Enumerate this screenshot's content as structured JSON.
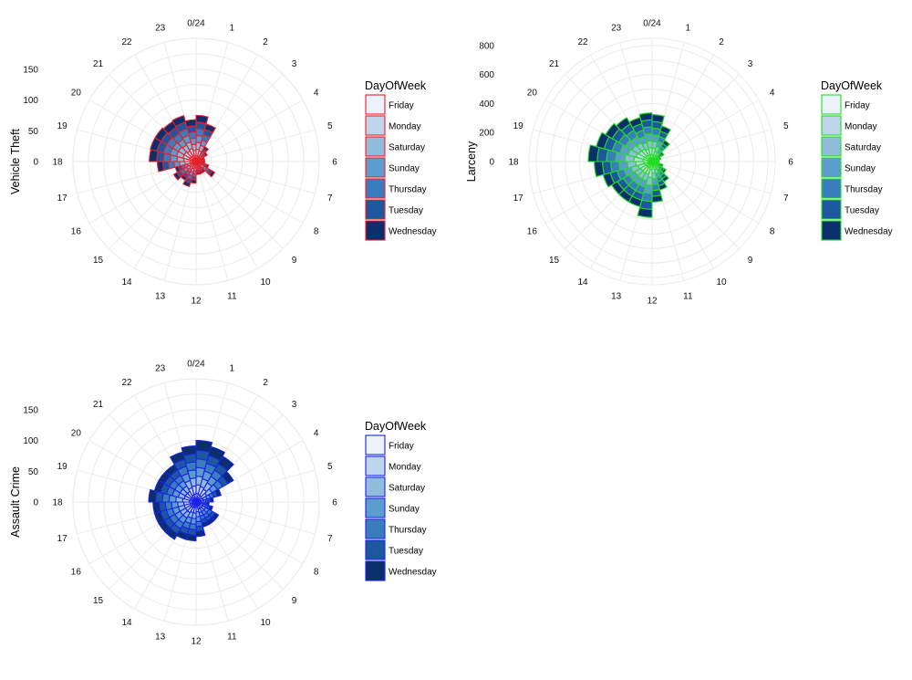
{
  "legend_title": "DayOfWeek",
  "days": [
    "Friday",
    "Monday",
    "Saturday",
    "Sunday",
    "Thursday",
    "Tuesday",
    "Wednesday"
  ],
  "fill_colors": [
    "#ebf2fb",
    "#bed5ec",
    "#91bddc",
    "#5c9dcd",
    "#3a7dbd",
    "#1d57a0",
    "#0b2f6d"
  ],
  "hour_labels": [
    "0/24",
    "1",
    "2",
    "3",
    "4",
    "5",
    "6",
    "7",
    "8",
    "9",
    "10",
    "11",
    "12",
    "13",
    "14",
    "15",
    "16",
    "17",
    "18",
    "19",
    "20",
    "21",
    "22",
    "23"
  ],
  "chart_data": [
    {
      "type": "stacked polar bar",
      "ylabel": "Vehicle Theft",
      "outline_color": "#e8202a",
      "ytick_labels": [
        "0",
        "50",
        "100",
        "150"
      ],
      "ytick_values": [
        0,
        50,
        100,
        150
      ],
      "rmax": 200,
      "series": [
        {
          "name": "Friday",
          "values": [
            10,
            9,
            4,
            3,
            2,
            2,
            2,
            3,
            5,
            3,
            3,
            3,
            5,
            6,
            5,
            6,
            5,
            9,
            10,
            11,
            11,
            10,
            11,
            9
          ]
        },
        {
          "name": "Monday",
          "values": [
            10,
            9,
            4,
            3,
            2,
            2,
            2,
            3,
            5,
            3,
            3,
            3,
            5,
            6,
            5,
            6,
            5,
            9,
            10,
            11,
            11,
            10,
            11,
            9
          ]
        },
        {
          "name": "Saturday",
          "values": [
            11,
            9,
            4,
            3,
            2,
            2,
            2,
            3,
            5,
            3,
            3,
            3,
            5,
            6,
            5,
            6,
            5,
            9,
            11,
            11,
            11,
            11,
            11,
            10
          ]
        },
        {
          "name": "Sunday",
          "values": [
            11,
            9,
            4,
            3,
            2,
            2,
            2,
            3,
            5,
            3,
            3,
            3,
            5,
            6,
            5,
            6,
            5,
            9,
            11,
            11,
            11,
            11,
            11,
            10
          ]
        },
        {
          "name": "Thursday",
          "values": [
            11,
            9,
            4,
            3,
            2,
            2,
            2,
            3,
            5,
            3,
            3,
            3,
            5,
            6,
            5,
            6,
            5,
            9,
            11,
            11,
            11,
            11,
            11,
            10
          ]
        },
        {
          "name": "Tuesday",
          "values": [
            11,
            9,
            4,
            3,
            2,
            2,
            2,
            3,
            5,
            3,
            3,
            3,
            5,
            6,
            5,
            6,
            5,
            9,
            11,
            11,
            11,
            11,
            11,
            10
          ]
        },
        {
          "name": "Wednesday",
          "values": [
            11,
            9,
            4,
            3,
            2,
            2,
            2,
            3,
            5,
            3,
            3,
            3,
            5,
            6,
            5,
            6,
            5,
            9,
            12,
            11,
            11,
            11,
            11,
            10
          ]
        }
      ]
    },
    {
      "type": "stacked polar bar",
      "ylabel": "Larceny",
      "outline_color": "#22dd22",
      "ytick_labels": [
        "0",
        "200",
        "400",
        "600",
        "800"
      ],
      "ytick_values": [
        0,
        200,
        400,
        600,
        800
      ],
      "rmax": 850,
      "series": [
        {
          "name": "Friday",
          "values": [
            46,
            36,
            24,
            13,
            9,
            7,
            7,
            11,
            16,
            23,
            29,
            40,
            55,
            46,
            46,
            46,
            50,
            57,
            63,
            57,
            53,
            50,
            45,
            48
          ]
        },
        {
          "name": "Monday",
          "values": [
            46,
            36,
            24,
            13,
            9,
            7,
            7,
            11,
            16,
            23,
            29,
            40,
            55,
            46,
            46,
            46,
            50,
            57,
            63,
            57,
            53,
            50,
            45,
            48
          ]
        },
        {
          "name": "Saturday",
          "values": [
            46,
            36,
            24,
            13,
            9,
            7,
            7,
            11,
            16,
            23,
            29,
            40,
            55,
            46,
            46,
            46,
            50,
            57,
            63,
            57,
            53,
            50,
            45,
            48
          ]
        },
        {
          "name": "Sunday",
          "values": [
            46,
            36,
            24,
            13,
            9,
            7,
            7,
            11,
            16,
            23,
            29,
            40,
            55,
            46,
            46,
            46,
            50,
            57,
            63,
            57,
            53,
            50,
            45,
            48
          ]
        },
        {
          "name": "Thursday",
          "values": [
            46,
            36,
            24,
            13,
            9,
            7,
            7,
            11,
            16,
            23,
            29,
            40,
            55,
            46,
            46,
            46,
            50,
            57,
            63,
            57,
            53,
            50,
            45,
            48
          ]
        },
        {
          "name": "Tuesday",
          "values": [
            46,
            36,
            24,
            13,
            9,
            7,
            7,
            11,
            16,
            23,
            29,
            40,
            55,
            46,
            46,
            46,
            50,
            57,
            63,
            57,
            53,
            50,
            45,
            48
          ]
        },
        {
          "name": "Wednesday",
          "values": [
            48,
            38,
            26,
            15,
            9,
            7,
            7,
            11,
            16,
            23,
            29,
            40,
            55,
            46,
            46,
            46,
            50,
            57,
            63,
            57,
            53,
            50,
            45,
            48
          ]
        }
      ]
    },
    {
      "type": "stacked polar bar",
      "ylabel": "Assault Crime",
      "outline_color": "#1a22e8",
      "ytick_labels": [
        "0",
        "50",
        "100",
        "150"
      ],
      "ytick_values": [
        0,
        50,
        100,
        150
      ],
      "rmax": 200,
      "series": [
        {
          "name": "Friday",
          "values": [
            14,
            13,
            12,
            10,
            6,
            4,
            3,
            4,
            6,
            6,
            6,
            8,
            9,
            9,
            10,
            10,
            10,
            10,
            11,
            10,
            10,
            10,
            12,
            13
          ]
        },
        {
          "name": "Monday",
          "values": [
            14,
            13,
            12,
            10,
            6,
            4,
            3,
            4,
            6,
            6,
            6,
            8,
            9,
            9,
            10,
            10,
            10,
            10,
            11,
            10,
            10,
            10,
            12,
            13
          ]
        },
        {
          "name": "Saturday",
          "values": [
            14,
            13,
            12,
            10,
            6,
            4,
            3,
            4,
            6,
            6,
            6,
            8,
            9,
            9,
            10,
            10,
            10,
            10,
            11,
            10,
            10,
            10,
            12,
            13
          ]
        },
        {
          "name": "Sunday",
          "values": [
            14,
            13,
            12,
            10,
            6,
            4,
            3,
            4,
            6,
            6,
            6,
            8,
            9,
            9,
            10,
            10,
            10,
            10,
            11,
            10,
            10,
            10,
            12,
            13
          ]
        },
        {
          "name": "Thursday",
          "values": [
            14,
            13,
            12,
            10,
            6,
            4,
            3,
            4,
            6,
            6,
            6,
            8,
            9,
            9,
            10,
            10,
            10,
            10,
            11,
            10,
            10,
            10,
            12,
            13
          ]
        },
        {
          "name": "Tuesday",
          "values": [
            14,
            13,
            12,
            10,
            6,
            4,
            3,
            4,
            6,
            6,
            6,
            8,
            9,
            9,
            10,
            10,
            10,
            10,
            11,
            10,
            10,
            10,
            12,
            13
          ]
        },
        {
          "name": "Wednesday",
          "values": [
            16,
            15,
            14,
            10,
            6,
            4,
            3,
            4,
            6,
            6,
            6,
            8,
            9,
            9,
            10,
            10,
            10,
            10,
            11,
            10,
            10,
            10,
            12,
            13
          ]
        }
      ]
    }
  ]
}
